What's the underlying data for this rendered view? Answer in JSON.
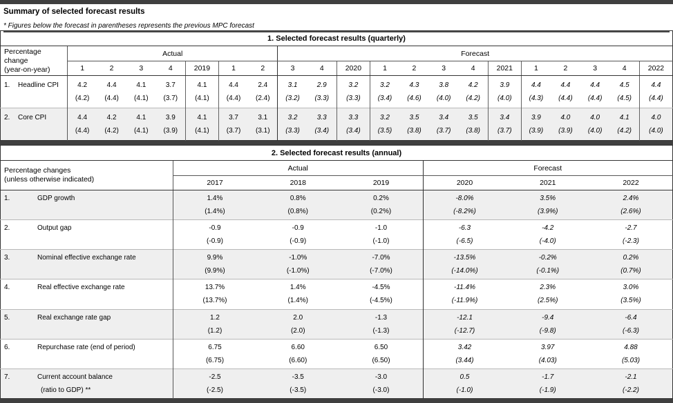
{
  "page": {
    "title": "Summary of selected forecast results",
    "note": "* Figures below the forecast in parentheses represents the previous MPC forecast"
  },
  "colors": {
    "frame_bar": "#3f3f3f",
    "row_shade": "#efefef"
  },
  "quarterly": {
    "title": "1. Selected forecast results (quarterly)",
    "label_header": [
      "Percentage change",
      "(year-on-year)"
    ],
    "group_headers": {
      "actual": "Actual",
      "forecast": "Forecast"
    },
    "columns": [
      "1",
      "2",
      "3",
      "4",
      "2019",
      "1",
      "2",
      "3",
      "4",
      "2020",
      "1",
      "2",
      "3",
      "4",
      "2021",
      "1",
      "2",
      "3",
      "4",
      "2022"
    ],
    "forecast_start_index": 7,
    "rows": [
      {
        "num": "1.",
        "label": "Headline CPI",
        "values": [
          "4.2",
          "4.4",
          "4.1",
          "3.7",
          "4.1",
          "4.4",
          "2.4",
          "3.1",
          "2.9",
          "3.2",
          "3.2",
          "4.3",
          "3.8",
          "4.2",
          "3.9",
          "4.4",
          "4.4",
          "4.4",
          "4.5",
          "4.4"
        ],
        "previous": [
          "(4.2)",
          "(4.4)",
          "(4.1)",
          "(3.7)",
          "(4.1)",
          "(4.4)",
          "(2.4)",
          "(3.2)",
          "(3.3)",
          "(3.3)",
          "(3.4)",
          "(4.6)",
          "(4.0)",
          "(4.2)",
          "(4.0)",
          "(4.3)",
          "(4.4)",
          "(4.4)",
          "(4.5)",
          "(4.4)"
        ]
      },
      {
        "num": "2.",
        "label": "Core CPI",
        "values": [
          "4.4",
          "4.2",
          "4.1",
          "3.9",
          "4.1",
          "3.7",
          "3.1",
          "3.2",
          "3.3",
          "3.3",
          "3.2",
          "3.5",
          "3.4",
          "3.5",
          "3.4",
          "3.9",
          "4.0",
          "4.0",
          "4.1",
          "4.0"
        ],
        "previous": [
          "(4.4)",
          "(4.2)",
          "(4.1)",
          "(3.9)",
          "(4.1)",
          "(3.7)",
          "(3.1)",
          "(3.3)",
          "(3.4)",
          "(3.4)",
          "(3.5)",
          "(3.8)",
          "(3.7)",
          "(3.8)",
          "(3.7)",
          "(3.9)",
          "(3.9)",
          "(4.0)",
          "(4.2)",
          "(4.0)"
        ]
      }
    ]
  },
  "annual": {
    "title": "2. Selected forecast results (annual)",
    "label_header": [
      "Percentage changes",
      "(unless otherwise indicated)"
    ],
    "group_headers": {
      "actual": "Actual",
      "forecast": "Forecast"
    },
    "columns": [
      "2017",
      "2018",
      "2019",
      "2020",
      "2021",
      "2022"
    ],
    "forecast_start_index": 3,
    "rows": [
      {
        "num": "1.",
        "label": "GDP growth",
        "values": [
          "1.4%",
          "0.8%",
          "0.2%",
          "-8.0%",
          "3.5%",
          "2.4%"
        ],
        "previous": [
          "(1.4%)",
          "(0.8%)",
          "(0.2%)",
          "(-8.2%)",
          "(3.9%)",
          "(2.6%)"
        ]
      },
      {
        "num": "2.",
        "label": "Output gap",
        "values": [
          "-0.9",
          "-0.9",
          "-1.0",
          "-6.3",
          "-4.2",
          "-2.7"
        ],
        "previous": [
          "(-0.9)",
          "(-0.9)",
          "(-1.0)",
          "(-6.5)",
          "(-4.0)",
          "(-2.3)"
        ]
      },
      {
        "num": "3.",
        "label": "Nominal effective exchange rate",
        "values": [
          "9.9%",
          "-1.0%",
          "-7.0%",
          "-13.5%",
          "-0.2%",
          "0.2%"
        ],
        "previous": [
          "(9.9%)",
          "(-1.0%)",
          "(-7.0%)",
          "(-14.0%)",
          "(-0.1%)",
          "(0.7%)"
        ]
      },
      {
        "num": "4.",
        "label": "Real effective exchange rate",
        "values": [
          "13.7%",
          "1.4%",
          "-4.5%",
          "-11.4%",
          "2.3%",
          "3.0%"
        ],
        "previous": [
          "(13.7%)",
          "(1.4%)",
          "(-4.5%)",
          "(-11.9%)",
          "(2.5%)",
          "(3.5%)"
        ]
      },
      {
        "num": "5.",
        "label": "Real exchange rate gap",
        "values": [
          "1.2",
          "2.0",
          "-1.3",
          "-12.1",
          "-9.4",
          "-6.4"
        ],
        "previous": [
          "(1.2)",
          "(2.0)",
          "(-1.3)",
          "(-12.7)",
          "(-9.8)",
          "(-6.3)"
        ]
      },
      {
        "num": "6.",
        "label": "Repurchase rate (end of period)",
        "values": [
          "6.75",
          "6.60",
          "6.50",
          "3.42",
          "3.97",
          "4.88"
        ],
        "previous": [
          "(6.75)",
          "(6.60)",
          "(6.50)",
          "(3.44)",
          "(4.03)",
          "(5.03)"
        ]
      },
      {
        "num": "7.",
        "label": "Current account balance",
        "label2": "(ratio to GDP) **",
        "values": [
          "-2.5",
          "-3.5",
          "-3.0",
          "0.5",
          "-1.7",
          "-2.1"
        ],
        "previous": [
          "(-2.5)",
          "(-3.5)",
          "(-3.0)",
          "(-1.0)",
          "(-1.9)",
          "(-2.2)"
        ]
      }
    ]
  }
}
